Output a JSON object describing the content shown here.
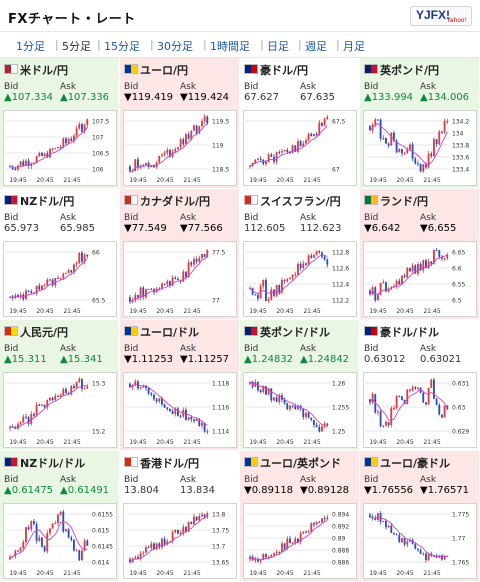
{
  "header": {
    "title": "FXチャート・レート",
    "logo_text": "YJFX!",
    "logo_sub": "Yahoo!"
  },
  "tabs": [
    {
      "label": "1分足",
      "active": false
    },
    {
      "label": "5分足",
      "active": true
    },
    {
      "label": "15分足",
      "active": false
    },
    {
      "label": "30分足",
      "active": false
    },
    {
      "label": "1時間足",
      "active": false
    },
    {
      "label": "日足",
      "active": false
    },
    {
      "label": "週足",
      "active": false
    },
    {
      "label": "月足",
      "active": false
    }
  ],
  "labels": {
    "bid": "Bid",
    "ask": "Ask"
  },
  "colors": {
    "up_bg": "#eaf6e4",
    "down_bg": "#fde7e6",
    "neutral_bg": "#ffffff",
    "up": "#0a8a3a",
    "down": "#d01818",
    "ma": "#cc44cc",
    "candle_up": "#e23b3b",
    "candle_down": "#2a4fbf"
  },
  "pairs": [
    {
      "name": "米ドル/円",
      "dir": "up",
      "flag": "us",
      "bid": "▲107.334",
      "ask": "▲107.336",
      "chart": {
        "xlabels": [
          "19:45",
          "20:45",
          "21:45"
        ],
        "ylabels": [
          "107.5",
          "107",
          "106.5",
          "106"
        ],
        "trend": [
          106.1,
          106.15,
          106.2,
          106.25,
          106.3,
          106.35,
          106.4,
          106.5,
          106.6,
          106.7,
          106.8,
          106.95,
          107.1,
          107.3,
          107.45
        ]
      }
    },
    {
      "name": "ユーロ/円",
      "dir": "down",
      "flag": "eu",
      "bid": "▼119.419",
      "ask": "▼119.424",
      "chart": {
        "xlabels": [
          "19:45",
          "20:45",
          "21:45"
        ],
        "ylabels": [
          "119.5",
          "119",
          "118.5"
        ],
        "trend": [
          118.5,
          118.55,
          118.6,
          118.5,
          118.55,
          118.65,
          118.75,
          118.8,
          118.9,
          119.0,
          119.1,
          119.2,
          119.35,
          119.45,
          119.5
        ]
      }
    },
    {
      "name": "豪ドル/円",
      "dir": "ne",
      "flag": "au",
      "bid": "67.627",
      "ask": "67.635",
      "chart": {
        "xlabels": [
          "19:45",
          "20:45",
          "21:45"
        ],
        "ylabels": [
          "67.5",
          "67"
        ],
        "trend": [
          66.85,
          66.9,
          66.95,
          67.0,
          66.98,
          67.05,
          67.1,
          67.1,
          67.15,
          67.2,
          67.3,
          67.35,
          67.45,
          67.55,
          67.62
        ]
      }
    },
    {
      "name": "英ポンド/円",
      "dir": "up",
      "flag": "gb",
      "bid": "▲133.994",
      "ask": "▲134.006",
      "chart": {
        "xlabels": [
          "19:45",
          "20:45",
          "21:45"
        ],
        "ylabels": [
          "134.2",
          "134",
          "133.8",
          "133.6",
          "133.4"
        ],
        "trend": [
          134.0,
          134.05,
          133.9,
          133.8,
          133.85,
          133.7,
          133.65,
          133.75,
          133.6,
          133.5,
          133.55,
          133.65,
          133.8,
          133.95,
          134.05
        ]
      }
    },
    {
      "name": "NZドル/円",
      "dir": "ne",
      "flag": "nz",
      "bid": "65.973",
      "ask": "65.985",
      "chart": {
        "xlabels": [
          "19:45",
          "20:45",
          "21:45"
        ],
        "ylabels": [
          "66",
          "65.5"
        ],
        "trend": [
          65.2,
          65.22,
          65.25,
          65.3,
          65.32,
          65.35,
          65.4,
          65.45,
          65.5,
          65.55,
          65.65,
          65.75,
          65.85,
          65.95,
          66.02
        ]
      }
    },
    {
      "name": "カナダドル/円",
      "dir": "down",
      "flag": "ca",
      "bid": "▼77.549",
      "ask": "▼77.566",
      "chart": {
        "xlabels": [
          "19:45",
          "20:45",
          "21:45"
        ],
        "ylabels": [
          "77.5",
          "77"
        ],
        "trend": [
          76.7,
          76.75,
          76.8,
          76.78,
          76.85,
          76.9,
          76.95,
          77.0,
          77.05,
          77.1,
          77.2,
          77.3,
          77.4,
          77.5,
          77.58
        ]
      }
    },
    {
      "name": "スイスフラン/円",
      "dir": "ne",
      "flag": "ch",
      "bid": "112.605",
      "ask": "112.623",
      "chart": {
        "xlabels": [
          "19:45",
          "20:45",
          "21:45"
        ],
        "ylabels": [
          "112.8",
          "112.6",
          "112.4",
          "112.2"
        ],
        "trend": [
          112.3,
          112.25,
          112.35,
          112.2,
          112.25,
          112.3,
          112.4,
          112.45,
          112.5,
          112.55,
          112.6,
          112.7,
          112.75,
          112.7,
          112.62
        ]
      }
    },
    {
      "name": "ランド/円",
      "dir": "down",
      "flag": "za",
      "bid": "▼6.642",
      "ask": "▼6.655",
      "chart": {
        "xlabels": [
          "19:45",
          "20:45",
          "21:45"
        ],
        "ylabels": [
          "6.65",
          "6.6",
          "6.55",
          "6.5"
        ],
        "trend": [
          6.55,
          6.53,
          6.56,
          6.55,
          6.57,
          6.58,
          6.59,
          6.6,
          6.61,
          6.62,
          6.63,
          6.64,
          6.66,
          6.65,
          6.64
        ]
      }
    },
    {
      "name": "人民元/円",
      "dir": "up",
      "flag": "cn",
      "bid": "▲15.311",
      "ask": "▲15.341",
      "chart": {
        "xlabels": [
          "19:45",
          "20:45",
          "21:45"
        ],
        "ylabels": [
          "15.3",
          "15.2"
        ],
        "trend": [
          15.1,
          15.12,
          15.14,
          15.15,
          15.18,
          15.2,
          15.22,
          15.24,
          15.25,
          15.27,
          15.29,
          15.31,
          15.33,
          15.34,
          15.32
        ]
      }
    },
    {
      "name": "ユーロ/ドル",
      "dir": "down",
      "flag": "eu",
      "bid": "▼1.11253",
      "ask": "▼1.11257",
      "chart": {
        "xlabels": [
          "19:45",
          "20:45",
          "21:45"
        ],
        "ylabels": [
          "1.118",
          "1.116",
          "1.114"
        ],
        "trend": [
          1.1185,
          1.1182,
          1.1178,
          1.1175,
          1.117,
          1.1165,
          1.116,
          1.1158,
          1.1155,
          1.1152,
          1.115,
          1.1145,
          1.114,
          1.1138,
          1.1135
        ]
      }
    },
    {
      "name": "英ポンド/ドル",
      "dir": "up",
      "flag": "gb",
      "bid": "▲1.24832",
      "ask": "▲1.24842",
      "chart": {
        "xlabels": [
          "19:45",
          "20:45",
          "21:45"
        ],
        "ylabels": [
          "1.26",
          "1.255",
          "1.25"
        ],
        "trend": [
          1.2605,
          1.26,
          1.259,
          1.2585,
          1.2575,
          1.257,
          1.256,
          1.255,
          1.254,
          1.2535,
          1.253,
          1.252,
          1.2505,
          1.2495,
          1.249
        ]
      }
    },
    {
      "name": "豪ドル/ドル",
      "dir": "ne",
      "flag": "au",
      "bid": "0.63012",
      "ask": "0.63021",
      "chart": {
        "xlabels": [
          "19:45",
          "20:45",
          "21:45"
        ],
        "ylabels": [
          "0.631",
          "0.63",
          "0.629"
        ],
        "trend": [
          0.6305,
          0.6298,
          0.6292,
          0.6295,
          0.6302,
          0.6306,
          0.6304,
          0.6308,
          0.6311,
          0.6309,
          0.6305,
          0.6312,
          0.6304,
          0.6298,
          0.6301
        ]
      }
    },
    {
      "name": "NZドル/ドル",
      "dir": "up",
      "flag": "nz",
      "bid": "▲0.61475",
      "ask": "▲0.61491",
      "chart": {
        "xlabels": [
          "19:45",
          "20:45",
          "21:45"
        ],
        "ylabels": [
          "0.6155",
          "0.615",
          "0.6145",
          "0.614"
        ],
        "trend": [
          0.6142,
          0.6144,
          0.6146,
          0.615,
          0.6152,
          0.6148,
          0.6145,
          0.6149,
          0.6153,
          0.6154,
          0.615,
          0.6147,
          0.6145,
          0.6143,
          0.6147
        ]
      }
    },
    {
      "name": "香港ドル/円",
      "dir": "ne",
      "flag": "hk",
      "bid": "13.804",
      "ask": "13.834",
      "chart": {
        "xlabels": [
          "19:45",
          "20:45",
          "21:45"
        ],
        "ylabels": [
          "13.8",
          "13.75",
          "13.7",
          "13.65"
        ],
        "trend": [
          13.62,
          13.63,
          13.64,
          13.65,
          13.67,
          13.68,
          13.7,
          13.71,
          13.73,
          13.74,
          13.76,
          13.78,
          13.79,
          13.8,
          13.81
        ]
      }
    },
    {
      "name": "ユーロ/英ポンド",
      "dir": "down",
      "flag": "eu",
      "bid": "▼0.89118",
      "ask": "▼0.89128",
      "chart": {
        "xlabels": [
          "19:45",
          "20:45",
          "21:45"
        ],
        "ylabels": [
          "0.894",
          "0.892",
          "0.89",
          "0.888",
          "0.886"
        ],
        "trend": [
          0.8862,
          0.8865,
          0.8868,
          0.887,
          0.8875,
          0.888,
          0.8886,
          0.889,
          0.8895,
          0.89,
          0.8908,
          0.8915,
          0.8925,
          0.8932,
          0.8938
        ]
      }
    },
    {
      "name": "ユーロ/豪ドル",
      "dir": "down",
      "flag": "eu",
      "bid": "▼1.76556",
      "ask": "▼1.76571",
      "chart": {
        "xlabels": [
          "19:45",
          "20:45",
          "21:45"
        ],
        "ylabels": [
          "1.775",
          "1.77",
          "1.765"
        ],
        "trend": [
          1.7745,
          1.774,
          1.773,
          1.772,
          1.771,
          1.77,
          1.7695,
          1.769,
          1.768,
          1.767,
          1.7665,
          1.766,
          1.7658,
          1.7662,
          1.7657
        ]
      }
    }
  ]
}
